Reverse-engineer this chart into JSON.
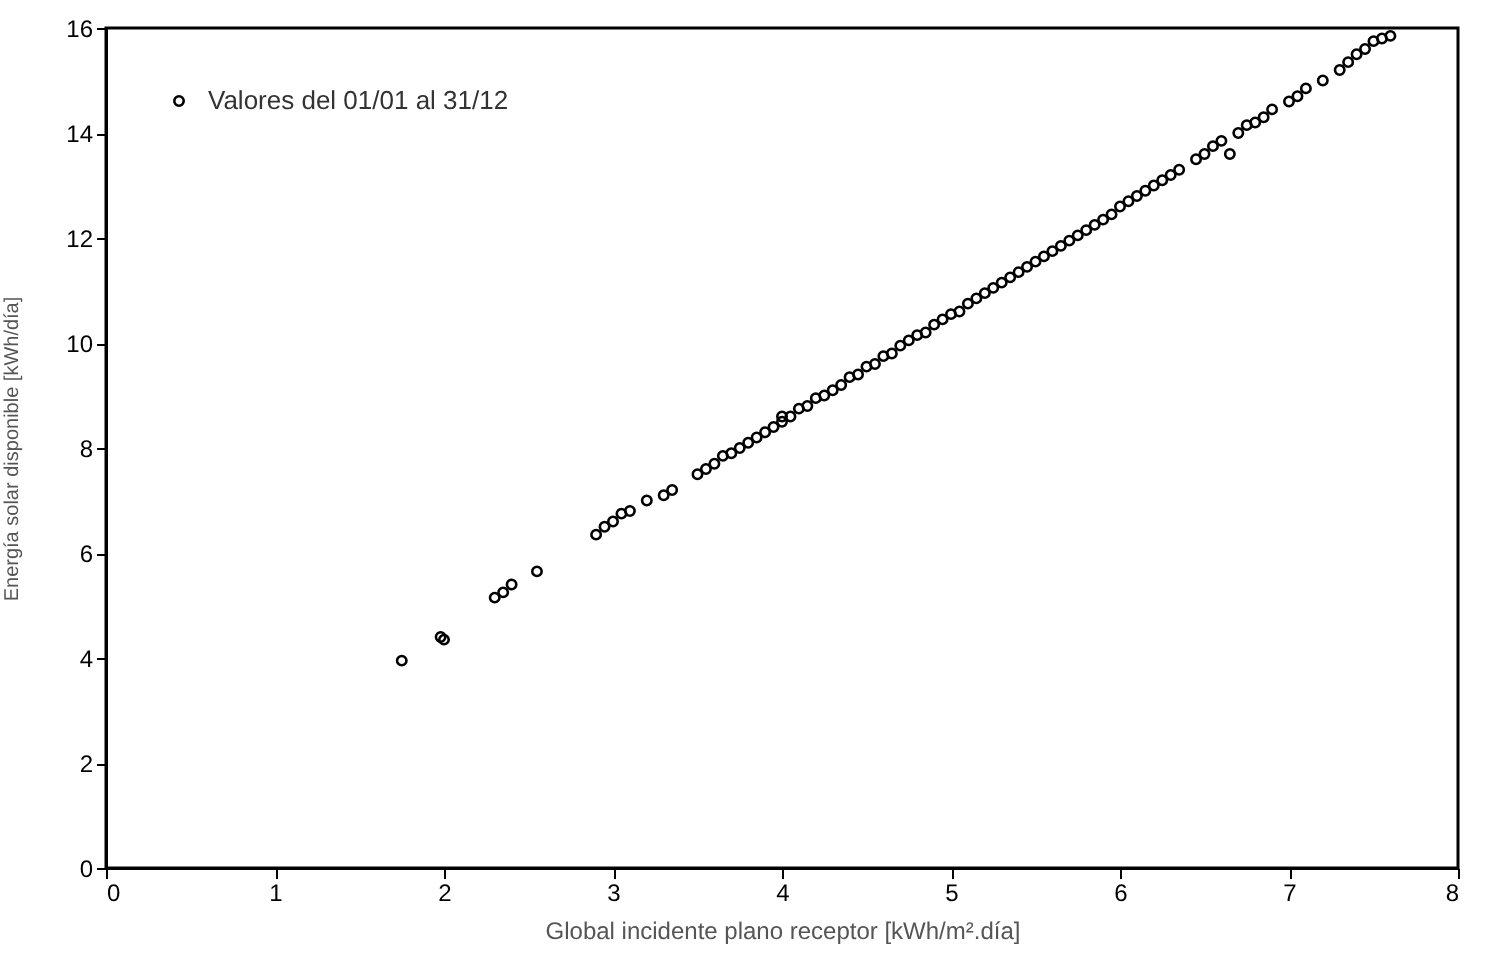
{
  "chart_data": {
    "type": "scatter",
    "xlabel": "Global incidente plano receptor [kWh/m².día]",
    "ylabel": "Energía solar disponible [kWh/día]",
    "xlim": [
      0,
      8
    ],
    "xticks": [
      0,
      1,
      2,
      3,
      4,
      5,
      6,
      7,
      8
    ],
    "ylim": [
      0,
      16
    ],
    "yticks": [
      0,
      2,
      4,
      6,
      8,
      10,
      12,
      14,
      16
    ],
    "grid": false,
    "legend": "top left",
    "marker": "circle",
    "series": [
      {
        "name": "Valores del 01/01 al 31/12",
        "color": "#000000",
        "x": [
          1.75,
          1.98,
          2.0,
          2.3,
          2.35,
          2.4,
          2.55,
          2.9,
          2.95,
          3.0,
          3.05,
          3.1,
          3.2,
          3.3,
          3.35,
          3.5,
          3.55,
          3.6,
          3.65,
          3.7,
          3.75,
          3.8,
          3.85,
          3.9,
          3.95,
          4.0,
          4.0,
          4.05,
          4.1,
          4.15,
          4.2,
          4.25,
          4.3,
          4.35,
          4.4,
          4.45,
          4.5,
          4.55,
          4.6,
          4.65,
          4.7,
          4.75,
          4.8,
          4.85,
          4.9,
          4.95,
          5.0,
          5.05,
          5.1,
          5.15,
          5.2,
          5.25,
          5.3,
          5.35,
          5.4,
          5.45,
          5.5,
          5.55,
          5.6,
          5.65,
          5.7,
          5.75,
          5.8,
          5.85,
          5.9,
          5.95,
          6.0,
          6.05,
          6.1,
          6.15,
          6.2,
          6.25,
          6.3,
          6.35,
          6.45,
          6.5,
          6.55,
          6.6,
          6.65,
          6.7,
          6.75,
          6.8,
          6.85,
          6.9,
          7.0,
          7.05,
          7.1,
          7.2,
          7.3,
          7.35,
          7.4,
          7.45,
          7.5,
          7.55,
          7.6
        ],
        "values": [
          3.95,
          4.4,
          4.35,
          5.15,
          5.25,
          5.4,
          5.65,
          6.35,
          6.5,
          6.6,
          6.75,
          6.8,
          7.0,
          7.1,
          7.2,
          7.5,
          7.6,
          7.7,
          7.85,
          7.9,
          8.0,
          8.1,
          8.2,
          8.3,
          8.4,
          8.5,
          8.6,
          8.6,
          8.75,
          8.8,
          8.95,
          9.0,
          9.1,
          9.2,
          9.35,
          9.4,
          9.55,
          9.6,
          9.75,
          9.8,
          9.95,
          10.05,
          10.15,
          10.2,
          10.35,
          10.45,
          10.55,
          10.6,
          10.75,
          10.85,
          10.95,
          11.05,
          11.15,
          11.25,
          11.35,
          11.45,
          11.55,
          11.65,
          11.75,
          11.85,
          11.95,
          12.05,
          12.15,
          12.25,
          12.35,
          12.45,
          12.6,
          12.7,
          12.8,
          12.9,
          13.0,
          13.1,
          13.2,
          13.3,
          13.5,
          13.6,
          13.75,
          13.85,
          13.6,
          14.0,
          14.15,
          14.2,
          14.3,
          14.45,
          14.6,
          14.7,
          14.85,
          15.0,
          15.2,
          15.35,
          15.5,
          15.6,
          15.75,
          15.8,
          15.85
        ]
      }
    ]
  }
}
